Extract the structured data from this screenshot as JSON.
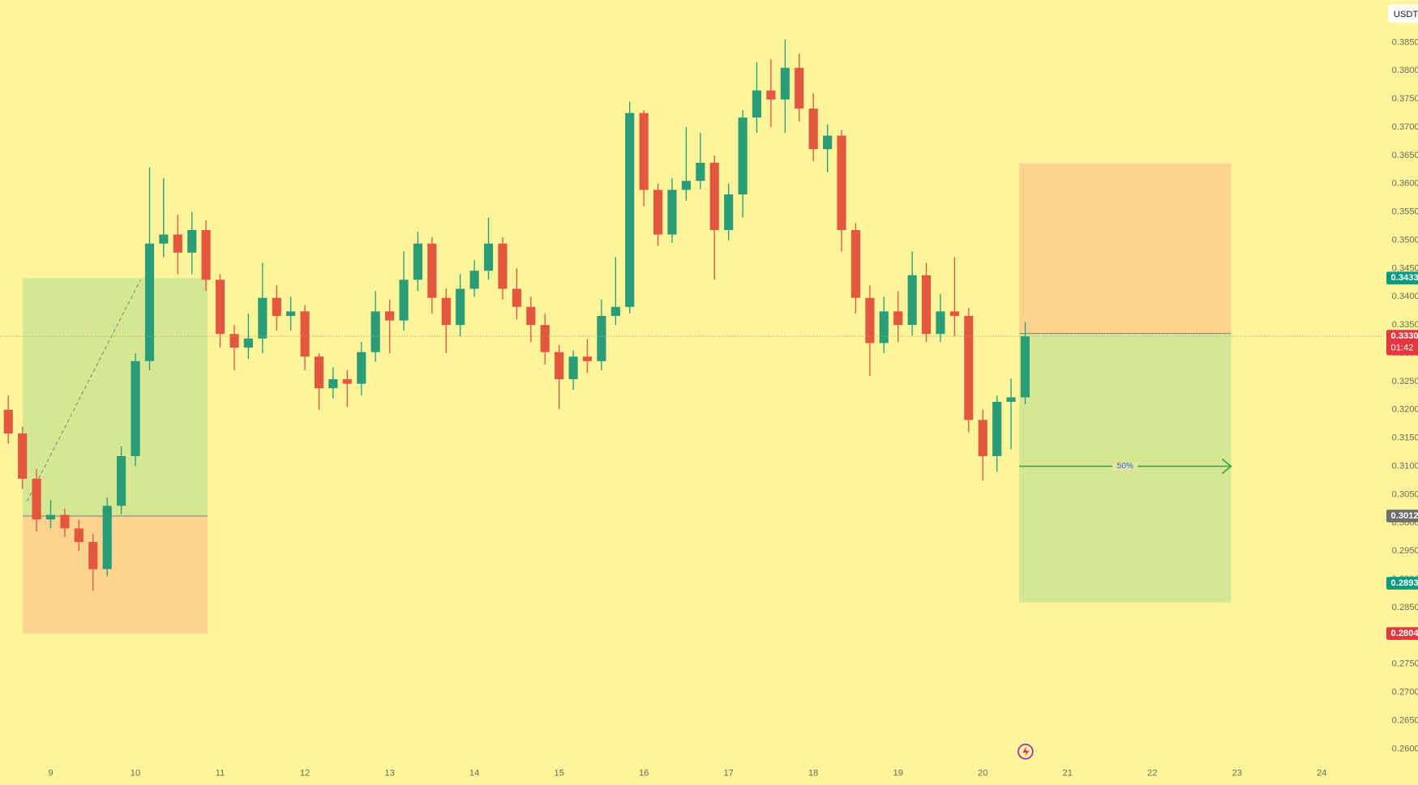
{
  "chart_data": {
    "type": "candlestick",
    "currency": "USDT",
    "up_color": "#2a9d78",
    "down_color": "#e4573f",
    "xlim": [
      8.402,
      24.73
    ],
    "ylim": [
      0.2536,
      0.3925
    ],
    "xticks": [
      9,
      10,
      11,
      12,
      13,
      14,
      15,
      16,
      17,
      18,
      19,
      20,
      21,
      22,
      23,
      24
    ],
    "yticks": [
      {
        "value": 0.26,
        "label": "0.2600"
      },
      {
        "value": 0.265,
        "label": "0.2650"
      },
      {
        "value": 0.27,
        "label": "0.2700"
      },
      {
        "value": 0.275,
        "label": "0.2750"
      },
      {
        "value": 0.28,
        "label": "0.2800"
      },
      {
        "value": 0.285,
        "label": "0.2850"
      },
      {
        "value": 0.29,
        "label": "0.2900"
      },
      {
        "value": 0.295,
        "label": "0.2950"
      },
      {
        "value": 0.3,
        "label": "0.3000"
      },
      {
        "value": 0.305,
        "label": "0.3050"
      },
      {
        "value": 0.31,
        "label": "0.3100"
      },
      {
        "value": 0.315,
        "label": "0.3150"
      },
      {
        "value": 0.32,
        "label": "0.3200"
      },
      {
        "value": 0.325,
        "label": "0.3250"
      },
      {
        "value": 0.33,
        "label": "0.3300"
      },
      {
        "value": 0.335,
        "label": "0.3350"
      },
      {
        "value": 0.34,
        "label": "0.3400"
      },
      {
        "value": 0.345,
        "label": "0.3450"
      },
      {
        "value": 0.35,
        "label": "0.3500"
      },
      {
        "value": 0.355,
        "label": "0.3550"
      },
      {
        "value": 0.36,
        "label": "0.3600"
      },
      {
        "value": 0.365,
        "label": "0.3650"
      },
      {
        "value": 0.37,
        "label": "0.3700"
      },
      {
        "value": 0.375,
        "label": "0.3750"
      },
      {
        "value": 0.38,
        "label": "0.3800"
      },
      {
        "value": 0.385,
        "label": "0.3850"
      }
    ],
    "x": [
      8.5,
      8.667,
      8.833,
      9,
      9.167,
      9.333,
      9.5,
      9.667,
      9.833,
      10,
      10.167,
      10.333,
      10.5,
      10.667,
      10.833,
      11,
      11.167,
      11.333,
      11.5,
      11.667,
      11.833,
      12,
      12.167,
      12.333,
      12.5,
      12.667,
      12.833,
      13,
      13.167,
      13.333,
      13.5,
      13.667,
      13.833,
      14,
      14.167,
      14.333,
      14.5,
      14.667,
      14.833,
      15,
      15.167,
      15.333,
      15.5,
      15.667,
      15.833,
      16,
      16.167,
      16.333,
      16.5,
      16.667,
      16.833,
      17,
      17.167,
      17.333,
      17.5,
      17.667,
      17.833,
      18,
      18.167,
      18.333,
      18.5,
      18.667,
      18.833,
      19,
      19.167,
      19.333,
      19.5,
      19.667,
      19.833,
      20,
      20.167,
      20.333,
      20.5
    ],
    "open": [
      0.32,
      0.3158,
      0.3078,
      0.3006,
      0.3014,
      0.299,
      0.2966,
      0.2918,
      0.303,
      0.3118,
      0.3286,
      0.3494,
      0.351,
      0.3478,
      0.3518,
      0.343,
      0.3334,
      0.331,
      0.3326,
      0.3398,
      0.3366,
      0.3374,
      0.3294,
      0.3238,
      0.3254,
      0.3246,
      0.3302,
      0.3374,
      0.3358,
      0.343,
      0.3494,
      0.3398,
      0.335,
      0.3414,
      0.3446,
      0.3494,
      0.3414,
      0.3382,
      0.335,
      0.3302,
      0.3254,
      0.3294,
      0.3286,
      0.3366,
      0.3382,
      0.3725,
      0.3589,
      0.351,
      0.3589,
      0.3605,
      0.3637,
      0.3518,
      0.3581,
      0.3717,
      0.3765,
      0.3749,
      0.3805,
      0.3733,
      0.3661,
      0.3685,
      0.3518,
      0.3398,
      0.3318,
      0.3374,
      0.335,
      0.3438,
      0.3334,
      0.3374,
      0.3366,
      0.3182,
      0.3118,
      0.3214,
      0.3222
    ],
    "high": [
      0.3225,
      0.317,
      0.3095,
      0.304,
      0.3025,
      0.3005,
      0.298,
      0.3045,
      0.3135,
      0.33,
      0.3629,
      0.361,
      0.3545,
      0.355,
      0.3535,
      0.344,
      0.335,
      0.337,
      0.346,
      0.342,
      0.34,
      0.3385,
      0.33,
      0.3275,
      0.327,
      0.332,
      0.341,
      0.3395,
      0.348,
      0.3515,
      0.3505,
      0.3415,
      0.344,
      0.3465,
      0.354,
      0.3505,
      0.345,
      0.34,
      0.337,
      0.3315,
      0.3305,
      0.3325,
      0.3395,
      0.347,
      0.3745,
      0.373,
      0.36,
      0.361,
      0.37,
      0.369,
      0.365,
      0.36,
      0.373,
      0.3815,
      0.382,
      0.3855,
      0.383,
      0.376,
      0.3705,
      0.3695,
      0.353,
      0.342,
      0.34,
      0.341,
      0.348,
      0.346,
      0.3405,
      0.347,
      0.338,
      0.32,
      0.3225,
      0.3255,
      0.3355
    ],
    "low": [
      0.314,
      0.306,
      0.2985,
      0.299,
      0.2975,
      0.295,
      0.288,
      0.2905,
      0.3015,
      0.31,
      0.327,
      0.347,
      0.344,
      0.344,
      0.341,
      0.331,
      0.327,
      0.329,
      0.33,
      0.334,
      0.334,
      0.327,
      0.32,
      0.322,
      0.3205,
      0.3225,
      0.3285,
      0.33,
      0.334,
      0.341,
      0.337,
      0.33,
      0.333,
      0.34,
      0.343,
      0.3395,
      0.336,
      0.332,
      0.328,
      0.3201,
      0.3235,
      0.3265,
      0.327,
      0.335,
      0.337,
      0.356,
      0.349,
      0.3495,
      0.357,
      0.359,
      0.343,
      0.35,
      0.354,
      0.369,
      0.37,
      0.369,
      0.371,
      0.364,
      0.362,
      0.348,
      0.337,
      0.326,
      0.33,
      0.332,
      0.333,
      0.332,
      0.332,
      0.333,
      0.316,
      0.3075,
      0.309,
      0.313,
      0.321
    ],
    "close": [
      0.3158,
      0.3078,
      0.3006,
      0.3014,
      0.299,
      0.2966,
      0.2918,
      0.303,
      0.3118,
      0.3286,
      0.3494,
      0.351,
      0.3478,
      0.3518,
      0.343,
      0.3334,
      0.331,
      0.3326,
      0.3398,
      0.3366,
      0.3374,
      0.3294,
      0.3238,
      0.3254,
      0.3246,
      0.3302,
      0.3374,
      0.3358,
      0.343,
      0.3494,
      0.3398,
      0.335,
      0.3414,
      0.3446,
      0.3494,
      0.3414,
      0.3382,
      0.335,
      0.3302,
      0.3254,
      0.3294,
      0.3286,
      0.3366,
      0.3382,
      0.3725,
      0.3589,
      0.351,
      0.3589,
      0.3605,
      0.3637,
      0.3518,
      0.3581,
      0.3717,
      0.3765,
      0.3749,
      0.3805,
      0.3733,
      0.3661,
      0.3685,
      0.3518,
      0.3398,
      0.3318,
      0.3374,
      0.335,
      0.3438,
      0.3334,
      0.3374,
      0.3366,
      0.3182,
      0.3118,
      0.3214,
      0.3222,
      0.333
    ],
    "current_price": {
      "value": 0.333,
      "label": "0.3330",
      "countdown": "01:42",
      "color": "#e4373f"
    },
    "price_labels": [
      {
        "value": 0.3433,
        "label": "0.3433",
        "color": "#089981"
      },
      {
        "value": 0.3012,
        "label": "0.3012",
        "color": "#6e6e6e"
      },
      {
        "value": 0.2893,
        "label": "0.2893",
        "color": "#089981"
      },
      {
        "value": 0.2804,
        "label": "0.2804",
        "color": "#e4373f"
      }
    ],
    "positions": [
      {
        "x": [
          8.67,
          10.85
        ],
        "entry": 0.3012,
        "target": 0.3433,
        "stop": 0.2804
      },
      {
        "x": [
          20.43,
          22.93
        ],
        "entry": 0.3335,
        "target": 0.2859,
        "stop": 0.3636
      }
    ],
    "trend_line": {
      "x": [
        8.72,
        10.06
      ],
      "y": [
        0.3038,
        0.343
      ]
    },
    "arrow": {
      "x": [
        20.43,
        22.93
      ],
      "y": 0.31,
      "label": "50%",
      "color": "#3aa845"
    }
  }
}
